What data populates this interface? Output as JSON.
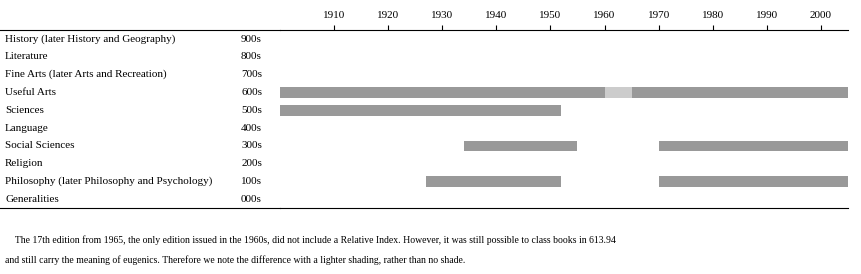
{
  "chart_data": {
    "type": "gantt",
    "orientation": "horizontal",
    "categories": [
      "History (later History and Geography)",
      "Literature",
      "Fine Arts (later Arts and Recreation)",
      "Useful Arts",
      "Sciences",
      "Language",
      "Social Sciences",
      "Religion",
      "Philosophy (later Philosophy and Psychology)",
      "Generalities"
    ],
    "codes": [
      "900s",
      "800s",
      "700s",
      "600s",
      "500s",
      "400s",
      "300s",
      "200s",
      "100s",
      "000s"
    ],
    "bars": [
      {
        "category": "Useful Arts",
        "start": 1900,
        "end": 1960,
        "color": "#999999"
      },
      {
        "category": "Useful Arts",
        "start": 1960,
        "end": 1965,
        "color": "#cccccc"
      },
      {
        "category": "Useful Arts",
        "start": 1965,
        "end": 2005,
        "color": "#999999"
      },
      {
        "category": "Sciences",
        "start": 1900,
        "end": 1952,
        "color": "#999999"
      },
      {
        "category": "Social Sciences",
        "start": 1934,
        "end": 1955,
        "color": "#999999"
      },
      {
        "category": "Social Sciences",
        "start": 1970,
        "end": 2005,
        "color": "#999999"
      },
      {
        "category": "Philosophy (later Philosophy and Psychology)",
        "start": 1927,
        "end": 1952,
        "color": "#999999"
      },
      {
        "category": "Philosophy (later Philosophy and Psychology)",
        "start": 1970,
        "end": 2005,
        "color": "#999999"
      }
    ],
    "xlim": [
      1900,
      2005
    ],
    "xticks": [
      1910,
      1920,
      1930,
      1940,
      1950,
      1960,
      1970,
      1980,
      1990,
      2000
    ],
    "tick_labels": "x",
    "annotations": [
      "    The 17th edition from 1965, the only edition issued in the 1960s, did not include a Relative Index. However, it was still possible to class books in 613.94",
      "and still carry the meaning of eugenics. Therefore we note the difference with a lighter shading, rather than no shade."
    ]
  }
}
